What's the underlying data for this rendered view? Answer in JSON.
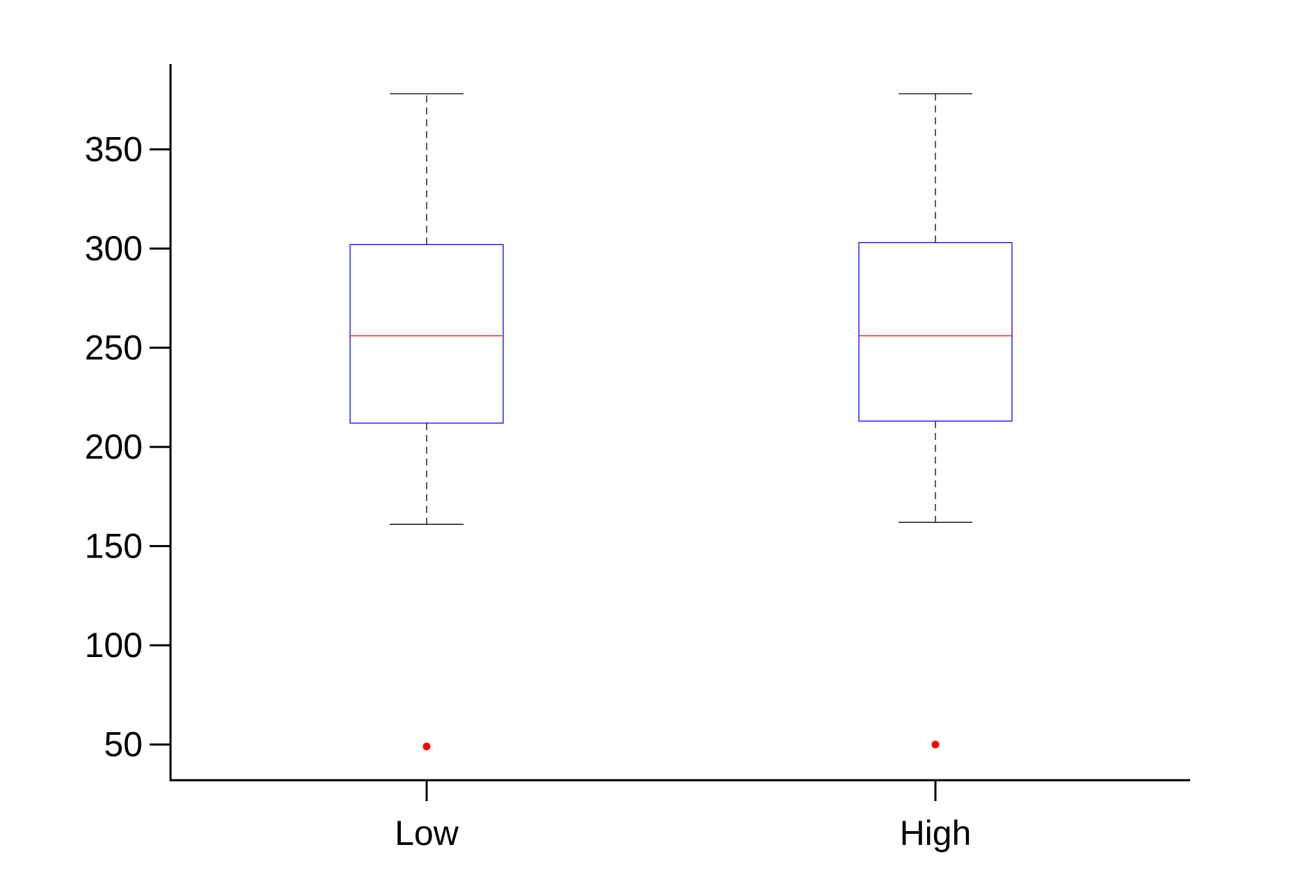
{
  "chart_data": {
    "type": "box",
    "title": "",
    "xlabel": "",
    "ylabel": "",
    "categories": [
      "Low",
      "High"
    ],
    "ylim": [
      32,
      393
    ],
    "yticks": [
      50,
      100,
      150,
      200,
      250,
      300,
      350
    ],
    "ytick_labels": [
      "50",
      "100",
      "150",
      "200",
      "250",
      "300",
      "350"
    ],
    "grid": false,
    "boxes": [
      {
        "category": "Low",
        "whisker_low": 161,
        "q1": 212,
        "median": 256,
        "q3": 302,
        "whisker_high": 378,
        "outliers": [
          49
        ]
      },
      {
        "category": "High",
        "whisker_low": 162,
        "q1": 213,
        "median": 256,
        "q3": 303,
        "whisker_high": 378,
        "outliers": [
          50
        ]
      }
    ],
    "colors": {
      "box": "#0000ff",
      "median": "#ff0000",
      "whisker": "#000000",
      "outlier": "#ff0000",
      "axis": "#000000"
    }
  }
}
